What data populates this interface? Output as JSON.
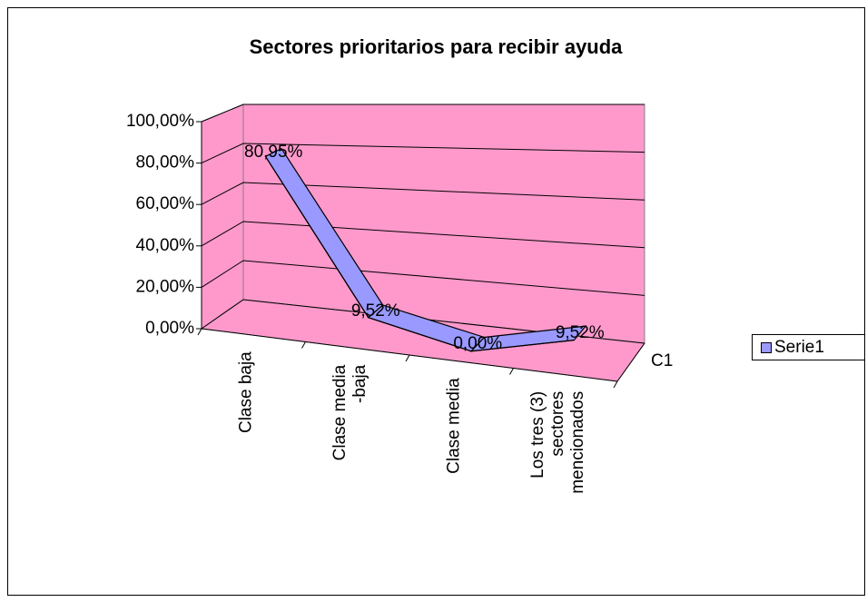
{
  "chart_data": {
    "type": "line3d",
    "title": "Sectores prioritarios para recibir ayuda",
    "categories": [
      "Clase baja",
      "Clase media -baja",
      "Clase media",
      "Los tres (3) sectores mencionados"
    ],
    "series": [
      {
        "name": "Serie1",
        "color": "#9999ff",
        "values": [
          80.95,
          9.52,
          0,
          9.52
        ],
        "value_labels": [
          "80,95%",
          "9,52%",
          "0,00%",
          "9,52%"
        ]
      }
    ],
    "depth_label": "C1",
    "ylim": [
      0,
      100
    ],
    "yticks": [
      {
        "value": 0,
        "label": "0,00%"
      },
      {
        "value": 20,
        "label": "20,00%"
      },
      {
        "value": 40,
        "label": "40,00%"
      },
      {
        "value": 60,
        "label": "60,00%"
      },
      {
        "value": 80,
        "label": "80,00%"
      },
      {
        "value": 100,
        "label": "100,00%"
      }
    ],
    "grid": true,
    "wall_color": "#ff99cc",
    "legend": "right"
  }
}
